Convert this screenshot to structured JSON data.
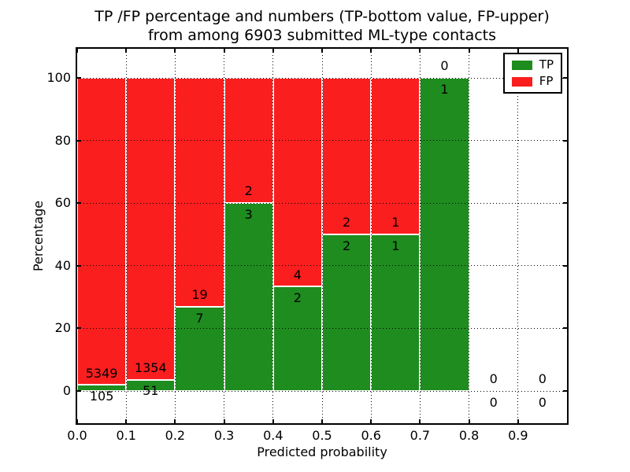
{
  "figure": {
    "title_line1": "TP /FP percentage and numbers (TP-bottom value, FP-upper)",
    "title_line2": "from among 6903 submitted ML-type contacts"
  },
  "chart_data": {
    "type": "bar",
    "subtype": "stacked-percentage-histogram",
    "title": "TP /FP percentage and numbers (TP-bottom value, FP-upper) from among 6903 submitted ML-type contacts",
    "xlabel": "Predicted probability",
    "ylabel": "Percentage",
    "xlim": [
      0.0,
      1.0
    ],
    "ylim": [
      -10.3,
      109.3
    ],
    "xtick_values": [
      0.0,
      0.1,
      0.2,
      0.3,
      0.4,
      0.5,
      0.6,
      0.7,
      0.8,
      0.9
    ],
    "xtick_labels": [
      "0.0",
      "0.1",
      "0.2",
      "0.3",
      "0.4",
      "0.5",
      "0.6",
      "0.7",
      "0.8",
      "0.9"
    ],
    "ytick_values": [
      0,
      20,
      40,
      60,
      80,
      100
    ],
    "ytick_labels": [
      "0",
      "20",
      "40",
      "60",
      "80",
      "100"
    ],
    "grid": "dotted-black-above-bars",
    "total_contacts": 6903,
    "annotation_note": "TP count printed below segment boundary, FP count printed above it",
    "colors": {
      "tp": "#1e8c1e",
      "fp": "#fa1e1e",
      "bar_edge": "#ffffff"
    },
    "legend": {
      "position": "upper right",
      "entries": [
        {
          "label": "TP",
          "color": "#1e8c1e"
        },
        {
          "label": "FP",
          "color": "#fa1e1e"
        }
      ]
    },
    "bins": [
      {
        "range": [
          0.0,
          0.1
        ],
        "tp": 105,
        "fp": 5349,
        "tp_pct": 1.93
      },
      {
        "range": [
          0.1,
          0.2
        ],
        "tp": 51,
        "fp": 1354,
        "tp_pct": 3.63
      },
      {
        "range": [
          0.2,
          0.3
        ],
        "tp": 7,
        "fp": 19,
        "tp_pct": 26.92
      },
      {
        "range": [
          0.3,
          0.4
        ],
        "tp": 3,
        "fp": 2,
        "tp_pct": 60.0
      },
      {
        "range": [
          0.4,
          0.5
        ],
        "tp": 2,
        "fp": 4,
        "tp_pct": 33.33
      },
      {
        "range": [
          0.5,
          0.6
        ],
        "tp": 2,
        "fp": 2,
        "tp_pct": 50.0
      },
      {
        "range": [
          0.6,
          0.7
        ],
        "tp": 1,
        "fp": 1,
        "tp_pct": 50.0
      },
      {
        "range": [
          0.7,
          0.8
        ],
        "tp": 1,
        "fp": 0,
        "tp_pct": 100.0
      },
      {
        "range": [
          0.8,
          0.9
        ],
        "tp": 0,
        "fp": 0,
        "tp_pct": null
      },
      {
        "range": [
          0.9,
          1.0
        ],
        "tp": 0,
        "fp": 0,
        "tp_pct": null
      }
    ]
  }
}
